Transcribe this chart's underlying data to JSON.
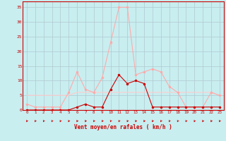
{
  "background_color": "#c8eef0",
  "grid_color": "#b0c8d0",
  "x_labels": [
    0,
    1,
    2,
    3,
    4,
    5,
    6,
    7,
    8,
    9,
    10,
    11,
    12,
    13,
    14,
    15,
    16,
    17,
    18,
    19,
    20,
    21,
    22,
    23
  ],
  "xlabel": "Vent moyen/en rafales ( km/h )",
  "ylim": [
    0,
    37
  ],
  "yticks": [
    0,
    5,
    10,
    15,
    20,
    25,
    30,
    35
  ],
  "rafales": [
    2,
    1,
    1,
    1,
    1,
    6,
    13,
    7,
    6,
    11,
    23,
    35,
    35,
    12,
    13,
    14,
    13,
    8,
    6,
    1,
    1,
    1,
    6,
    5
  ],
  "moyen": [
    0,
    0,
    0,
    0,
    0,
    0,
    1,
    2,
    1,
    1,
    7,
    12,
    9,
    10,
    9,
    1,
    1,
    1,
    1,
    1,
    1,
    1,
    1,
    1
  ],
  "line1_color": "#ffaaaa",
  "line2_color": "#cc0000",
  "flat1": [
    5,
    5,
    5,
    5,
    5,
    5,
    6,
    6,
    6,
    6,
    6,
    6,
    6,
    6,
    6,
    6,
    6,
    6,
    6,
    6,
    6,
    6,
    6,
    5
  ],
  "flat_color1": "#ffcccc",
  "xlabel_color": "#cc0000",
  "tick_color": "#cc0000",
  "spine_color": "#cc0000"
}
